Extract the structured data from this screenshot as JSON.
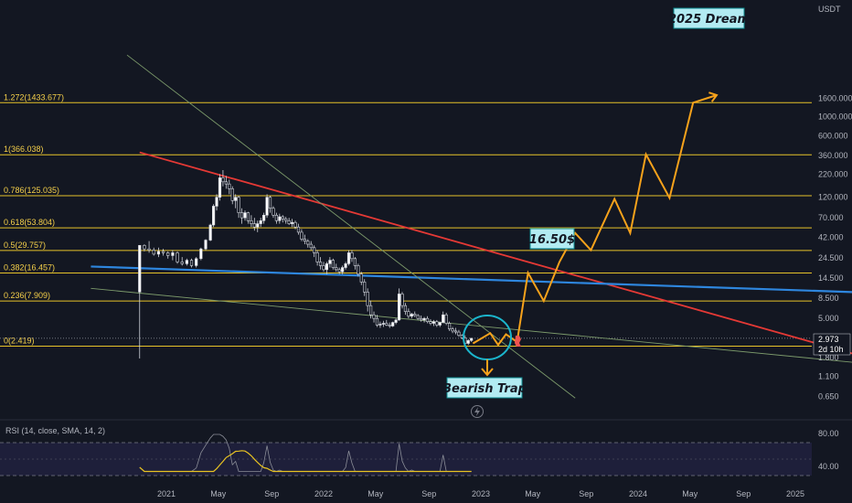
{
  "chart_data": {
    "type": "line",
    "price_axis": {
      "unit_label": "USDT",
      "scale": "log",
      "ticks": [
        {
          "label": "1600.000",
          "value": 1600
        },
        {
          "label": "1000.000",
          "value": 1000
        },
        {
          "label": "600.000",
          "value": 600
        },
        {
          "label": "360.000",
          "value": 360
        },
        {
          "label": "220.000",
          "value": 220
        },
        {
          "label": "120.000",
          "value": 120
        },
        {
          "label": "70.000",
          "value": 70
        },
        {
          "label": "42.000",
          "value": 42
        },
        {
          "label": "24.500",
          "value": 24.5
        },
        {
          "label": "14.500",
          "value": 14.5
        },
        {
          "label": "8.500",
          "value": 8.5
        },
        {
          "label": "5.000",
          "value": 5
        },
        {
          "label": "1.800",
          "value": 1.8
        },
        {
          "label": "1.100",
          "value": 1.1
        },
        {
          "label": "0.650",
          "value": 0.65
        }
      ],
      "current_price_label": "2.973",
      "current_price": 2.973,
      "countdown_label": "2d 10h"
    },
    "time_axis": {
      "ticks": [
        {
          "label": "2021",
          "value": 2021.0
        },
        {
          "label": "May",
          "value": 2021.33
        },
        {
          "label": "Sep",
          "value": 2021.67
        },
        {
          "label": "2022",
          "value": 2022.0
        },
        {
          "label": "May",
          "value": 2022.33
        },
        {
          "label": "Sep",
          "value": 2022.67
        },
        {
          "label": "2023",
          "value": 2023.0
        },
        {
          "label": "May",
          "value": 2023.33
        },
        {
          "label": "Sep",
          "value": 2023.67
        },
        {
          "label": "2024",
          "value": 2024.0
        },
        {
          "label": "May",
          "value": 2024.33
        },
        {
          "label": "Sep",
          "value": 2024.67
        },
        {
          "label": "2025",
          "value": 2025.0
        }
      ]
    },
    "fib_levels": [
      {
        "label": "1.272(1433.677)",
        "price": 1433.677
      },
      {
        "label": "1(366.038)",
        "price": 366.038
      },
      {
        "label": "0.786(125.035)",
        "price": 125.035
      },
      {
        "label": "0.618(53.804)",
        "price": 53.804
      },
      {
        "label": "0.5(29.757)",
        "price": 29.757
      },
      {
        "label": "0.382(16.457)",
        "price": 16.457
      },
      {
        "label": "0.236(7.909)",
        "price": 7.909
      },
      {
        "label": "0(2.419)",
        "price": 2.419
      }
    ],
    "candles": [
      [
        2020.83,
        10,
        33,
        1.75,
        34
      ],
      [
        2020.86,
        34,
        35,
        29,
        31
      ],
      [
        2020.89,
        31,
        38,
        28,
        30
      ],
      [
        2020.92,
        30,
        32,
        26,
        27
      ],
      [
        2020.95,
        27,
        32,
        25,
        29
      ],
      [
        2020.98,
        29,
        31,
        26,
        28
      ],
      [
        2021.01,
        28,
        29,
        24,
        26
      ],
      [
        2021.04,
        26,
        30,
        23,
        28
      ],
      [
        2021.07,
        28,
        29,
        21,
        22
      ],
      [
        2021.1,
        22,
        25,
        20,
        21
      ],
      [
        2021.13,
        21,
        24,
        20,
        23
      ],
      [
        2021.16,
        23,
        24,
        19,
        20
      ],
      [
        2021.19,
        20,
        25,
        19,
        24
      ],
      [
        2021.22,
        24,
        32,
        23,
        31
      ],
      [
        2021.25,
        31,
        40,
        30,
        39
      ],
      [
        2021.28,
        39,
        60,
        38,
        58
      ],
      [
        2021.3,
        58,
        100,
        55,
        95
      ],
      [
        2021.32,
        95,
        130,
        85,
        120
      ],
      [
        2021.34,
        120,
        220,
        110,
        200
      ],
      [
        2021.36,
        200,
        245,
        160,
        180
      ],
      [
        2021.38,
        180,
        210,
        150,
        170
      ],
      [
        2021.4,
        170,
        190,
        130,
        150
      ],
      [
        2021.42,
        150,
        160,
        100,
        110
      ],
      [
        2021.44,
        110,
        130,
        90,
        120
      ],
      [
        2021.46,
        120,
        125,
        70,
        80
      ],
      [
        2021.48,
        80,
        90,
        60,
        70
      ],
      [
        2021.5,
        70,
        85,
        65,
        80
      ],
      [
        2021.52,
        80,
        82,
        60,
        65
      ],
      [
        2021.54,
        65,
        75,
        55,
        60
      ],
      [
        2021.56,
        60,
        70,
        50,
        55
      ],
      [
        2021.58,
        55,
        65,
        48,
        60
      ],
      [
        2021.6,
        60,
        70,
        55,
        65
      ],
      [
        2021.62,
        65,
        80,
        60,
        75
      ],
      [
        2021.64,
        75,
        130,
        70,
        120
      ],
      [
        2021.66,
        120,
        125,
        80,
        90
      ],
      [
        2021.68,
        90,
        95,
        70,
        75
      ],
      [
        2021.7,
        75,
        80,
        60,
        65
      ],
      [
        2021.72,
        65,
        78,
        60,
        72
      ],
      [
        2021.74,
        72,
        75,
        62,
        68
      ],
      [
        2021.76,
        68,
        72,
        60,
        65
      ],
      [
        2021.78,
        65,
        70,
        58,
        60
      ],
      [
        2021.8,
        60,
        68,
        55,
        62
      ],
      [
        2021.82,
        62,
        65,
        52,
        55
      ],
      [
        2021.84,
        55,
        60,
        45,
        48
      ],
      [
        2021.86,
        48,
        52,
        38,
        40
      ],
      [
        2021.88,
        40,
        45,
        35,
        38
      ],
      [
        2021.9,
        38,
        40,
        32,
        35
      ],
      [
        2021.92,
        35,
        38,
        30,
        32
      ],
      [
        2021.94,
        32,
        34,
        25,
        28
      ],
      [
        2021.96,
        28,
        30,
        20,
        22
      ],
      [
        2021.98,
        22,
        25,
        18,
        20
      ],
      [
        2022.0,
        20,
        22,
        17,
        18
      ],
      [
        2022.02,
        18,
        22,
        16,
        21
      ],
      [
        2022.04,
        21,
        25,
        19,
        23
      ],
      [
        2022.06,
        23,
        24,
        18,
        19
      ],
      [
        2022.08,
        19,
        21,
        17,
        18
      ],
      [
        2022.1,
        18,
        19,
        16,
        17
      ],
      [
        2022.12,
        17,
        20,
        16,
        19
      ],
      [
        2022.14,
        19,
        22,
        18,
        21
      ],
      [
        2022.16,
        21,
        30,
        20,
        28
      ],
      [
        2022.18,
        28,
        30,
        22,
        24
      ],
      [
        2022.2,
        24,
        25,
        18,
        20
      ],
      [
        2022.22,
        20,
        21,
        15,
        16
      ],
      [
        2022.24,
        16,
        17,
        12,
        13
      ],
      [
        2022.26,
        13,
        14,
        9,
        10
      ],
      [
        2022.28,
        10,
        11,
        6,
        7
      ],
      [
        2022.3,
        7,
        8,
        5,
        5.5
      ],
      [
        2022.32,
        5.5,
        6,
        4.5,
        5
      ],
      [
        2022.34,
        5,
        5.5,
        4,
        4.2
      ],
      [
        2022.36,
        4.2,
        4.6,
        3.9,
        4.3
      ],
      [
        2022.38,
        4.3,
        4.7,
        4,
        4.4
      ],
      [
        2022.4,
        4.4,
        4.8,
        4.1,
        4.2
      ],
      [
        2022.42,
        4.2,
        4.5,
        3.9,
        4.1
      ],
      [
        2022.44,
        4.1,
        4.6,
        4,
        4.5
      ],
      [
        2022.46,
        4.5,
        5,
        4.3,
        4.8
      ],
      [
        2022.48,
        4.8,
        11,
        4.7,
        9.5
      ],
      [
        2022.5,
        9.5,
        10,
        6.5,
        7
      ],
      [
        2022.52,
        7,
        7.5,
        5.5,
        6
      ],
      [
        2022.54,
        6,
        6.5,
        5,
        5.3
      ],
      [
        2022.56,
        5.3,
        5.8,
        5,
        5.6
      ],
      [
        2022.58,
        5.6,
        6,
        5.2,
        5.4
      ],
      [
        2022.6,
        5.4,
        5.6,
        4.8,
        5
      ],
      [
        2022.62,
        5,
        5.4,
        4.6,
        4.8
      ],
      [
        2022.64,
        4.8,
        5.2,
        4.5,
        5
      ],
      [
        2022.66,
        5,
        5.3,
        4.4,
        4.6
      ],
      [
        2022.68,
        4.6,
        4.9,
        4.2,
        4.4
      ],
      [
        2022.7,
        4.4,
        4.8,
        4.1,
        4.6
      ],
      [
        2022.72,
        4.6,
        4.8,
        4,
        4.2
      ],
      [
        2022.74,
        4.2,
        4.6,
        4,
        4.5
      ],
      [
        2022.76,
        4.5,
        6,
        4.4,
        5.5
      ],
      [
        2022.78,
        5.5,
        5.8,
        4.2,
        4.4
      ],
      [
        2022.8,
        4.4,
        4.6,
        3.6,
        3.8
      ],
      [
        2022.82,
        3.8,
        4,
        3.4,
        3.6
      ],
      [
        2022.84,
        3.6,
        3.9,
        3.3,
        3.5
      ],
      [
        2022.86,
        3.5,
        3.7,
        3.1,
        3.2
      ],
      [
        2022.88,
        3.2,
        3.3,
        2.9,
        3.0
      ],
      [
        2022.9,
        3.0,
        3.2,
        2.4,
        2.6
      ],
      [
        2022.92,
        2.6,
        2.9,
        2.5,
        2.8
      ],
      [
        2022.94,
        2.8,
        3.0,
        2.7,
        2.973
      ]
    ],
    "trend_lines": [
      {
        "x": [
          2020.83,
          2025.5
        ],
        "y": [
          390,
          1.7
        ]
      },
      {
        "x": [
          2020.52,
          2025.5
        ],
        "y": [
          19.5,
          9.8
        ]
      },
      {
        "x": [
          2020.52,
          2025.5
        ],
        "y": [
          11,
          1.5
        ]
      },
      {
        "x": [
          2020.75,
          2023.6
        ],
        "y": [
          5000,
          0.62
        ]
      }
    ],
    "projection_path": {
      "x": [
        2022.95,
        2023.06,
        2023.11,
        2023.16,
        2023.23,
        2023.3,
        2023.4,
        2023.5,
        2023.6,
        2023.7,
        2023.85,
        2023.95,
        2024.05,
        2024.2,
        2024.35,
        2024.5
      ],
      "y": [
        2.6,
        3.4,
        2.5,
        3.3,
        2.7,
        16.5,
        7.9,
        22,
        47,
        30,
        115,
        47,
        370,
        118,
        1434,
        1750
      ]
    },
    "annotations": {
      "dream_label": "2025 Dream",
      "target_label": "16.50$",
      "trap_label": "Bearish Trap"
    },
    "indicator": {
      "label": "RSI (14, close, SMA, 14, 2)",
      "upper_label": "80.00",
      "lower_label": "40.00",
      "ylim": [
        20,
        100
      ]
    }
  }
}
